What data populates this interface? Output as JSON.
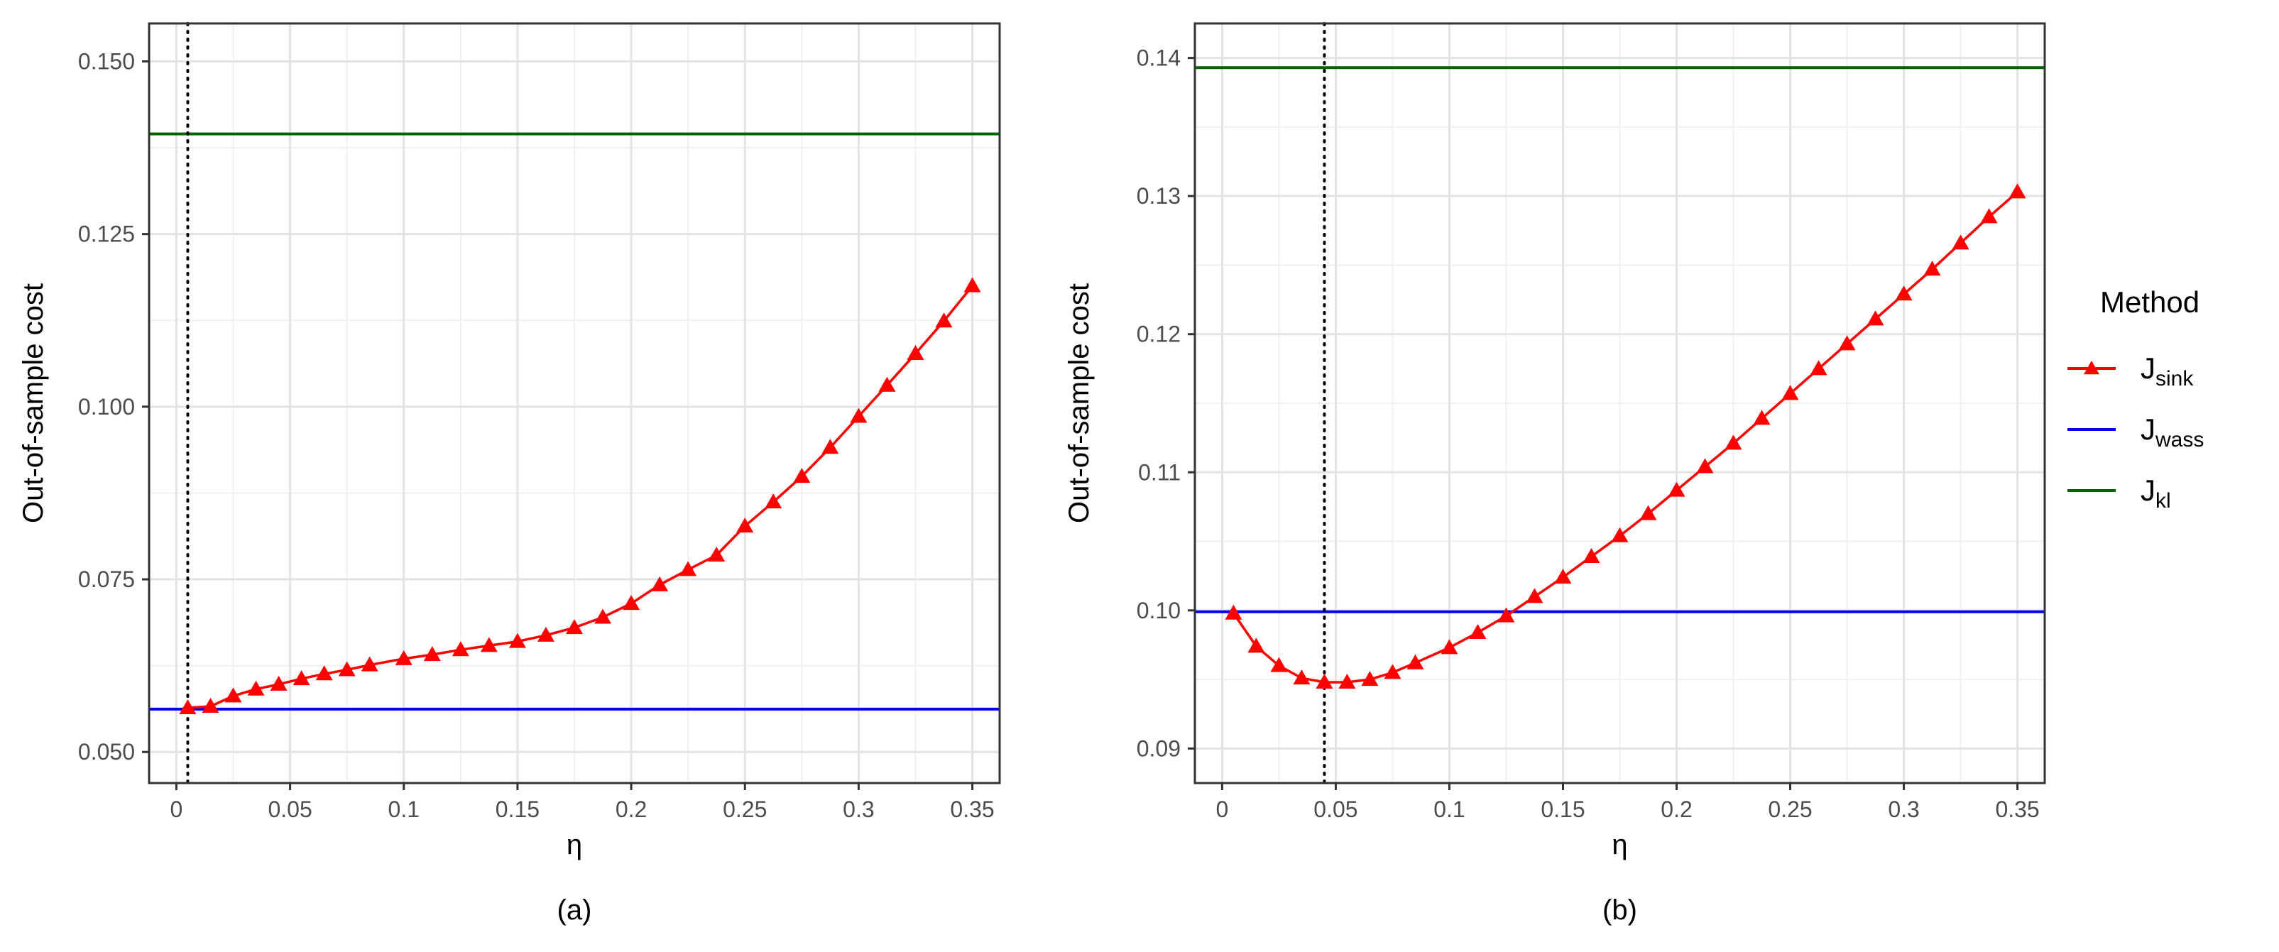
{
  "legend": {
    "title": "Method",
    "placement": "right",
    "entries": [
      {
        "main": "J",
        "sub": "sink",
        "color": "#ff0000",
        "marker": "triangle"
      },
      {
        "main": "J",
        "sub": "wass",
        "color": "#0000ff",
        "marker": "none"
      },
      {
        "main": "J",
        "sub": "kl",
        "color": "#006400",
        "marker": "none"
      }
    ]
  },
  "chart_data": [
    {
      "type": "line",
      "panel_caption": "(a)",
      "xlabel": "η",
      "ylabel": "Out-of-sample cost",
      "xlim": [
        -0.012,
        0.362
      ],
      "ylim": [
        0.0455,
        0.1555
      ],
      "xticks": [
        0,
        0.05,
        0.1,
        0.15,
        0.2,
        0.25,
        0.3,
        0.35
      ],
      "xtick_labels": [
        "0",
        "0.05",
        "0.1",
        "0.15",
        "0.2",
        "0.25",
        "0.3",
        "0.35"
      ],
      "yticks": [
        0.05,
        0.075,
        0.1,
        0.125,
        0.15
      ],
      "ytick_labels": [
        "0.050",
        "0.075",
        "0.100",
        "0.125",
        "0.150"
      ],
      "grid": true,
      "vline_x": 0.005,
      "hlines": [
        {
          "name": "J_wass",
          "y": 0.0562,
          "color": "#0000ff"
        },
        {
          "name": "J_kl",
          "y": 0.1395,
          "color": "#006400"
        }
      ],
      "series": [
        {
          "name": "J_sink",
          "color": "#ff0000",
          "x": [
            0.005,
            0.015,
            0.025,
            0.035,
            0.045,
            0.055,
            0.065,
            0.075,
            0.085,
            0.1,
            0.1125,
            0.125,
            0.1375,
            0.15,
            0.1625,
            0.175,
            0.1875,
            0.2,
            0.2125,
            0.225,
            0.2375,
            0.25,
            0.2625,
            0.275,
            0.2875,
            0.3,
            0.3125,
            0.325,
            0.3375,
            0.35
          ],
          "y": [
            0.0564,
            0.0566,
            0.0581,
            0.0591,
            0.0598,
            0.0606,
            0.0613,
            0.0619,
            0.0626,
            0.0635,
            0.0641,
            0.0648,
            0.0654,
            0.066,
            0.0669,
            0.068,
            0.0695,
            0.0715,
            0.0742,
            0.0764,
            0.0785,
            0.0827,
            0.0862,
            0.0899,
            0.0941,
            0.0986,
            0.1031,
            0.1077,
            0.1124,
            0.1175
          ]
        }
      ]
    },
    {
      "type": "line",
      "panel_caption": "(b)",
      "xlabel": "η",
      "ylabel": "Out-of-sample cost",
      "xlim": [
        -0.012,
        0.362
      ],
      "ylim": [
        0.0875,
        0.1425
      ],
      "xticks": [
        0,
        0.05,
        0.1,
        0.15,
        0.2,
        0.25,
        0.3,
        0.35
      ],
      "xtick_labels": [
        "0",
        "0.05",
        "0.1",
        "0.15",
        "0.2",
        "0.25",
        "0.3",
        "0.35"
      ],
      "yticks": [
        0.09,
        0.1,
        0.11,
        0.12,
        0.13,
        0.14
      ],
      "ytick_labels": [
        "0.09",
        "0.10",
        "0.11",
        "0.12",
        "0.13",
        "0.14"
      ],
      "grid": true,
      "vline_x": 0.045,
      "hlines": [
        {
          "name": "J_wass",
          "y": 0.0999,
          "color": "#0000ff"
        },
        {
          "name": "J_kl",
          "y": 0.1393,
          "color": "#006400"
        }
      ],
      "series": [
        {
          "name": "J_sink",
          "color": "#ff0000",
          "x": [
            0.005,
            0.015,
            0.025,
            0.035,
            0.045,
            0.055,
            0.065,
            0.075,
            0.085,
            0.1,
            0.1125,
            0.125,
            0.1375,
            0.15,
            0.1625,
            0.175,
            0.1875,
            0.2,
            0.2125,
            0.225,
            0.2375,
            0.25,
            0.2625,
            0.275,
            0.2875,
            0.3,
            0.3125,
            0.325,
            0.3375,
            0.35
          ],
          "y": [
            0.0998,
            0.0974,
            0.096,
            0.0951,
            0.0948,
            0.0948,
            0.095,
            0.0955,
            0.0962,
            0.0973,
            0.0984,
            0.0996,
            0.101,
            0.1024,
            0.1039,
            0.1054,
            0.107,
            0.1087,
            0.1104,
            0.1121,
            0.1139,
            0.1157,
            0.1175,
            0.1193,
            0.1211,
            0.1229,
            0.1247,
            0.1266,
            0.1285,
            0.1303
          ]
        }
      ]
    }
  ]
}
